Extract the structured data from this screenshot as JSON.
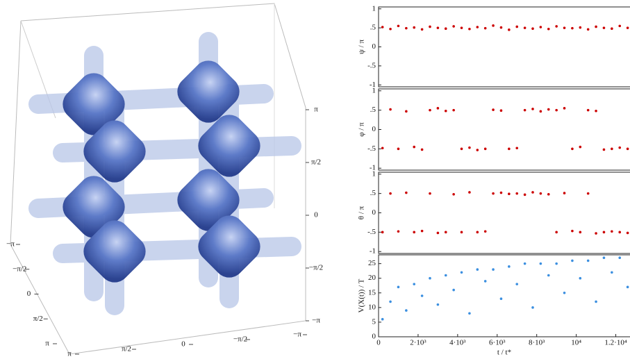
{
  "chart_data": [
    {
      "type": "isosurface",
      "xticks": [
        {
          "value": 1,
          "label": "π"
        },
        {
          "value": 0.5,
          "label": "π/2"
        },
        {
          "value": 0,
          "label": "0"
        },
        {
          "value": -0.5,
          "label": "−π/2"
        },
        {
          "value": -1,
          "label": "−π"
        }
      ],
      "yticks": [
        {
          "value": -1,
          "label": "−π"
        },
        {
          "value": -0.5,
          "label": "−π/2"
        },
        {
          "value": 0,
          "label": "0"
        },
        {
          "value": 0.5,
          "label": "π/2"
        },
        {
          "value": 1,
          "label": "π"
        }
      ],
      "zticks": [
        {
          "value": 1,
          "label": "π"
        },
        {
          "value": 0.5,
          "label": "π/2"
        },
        {
          "value": 0,
          "label": "0"
        },
        {
          "value": -0.5,
          "label": "−π/2"
        },
        {
          "value": -1,
          "label": "−π"
        }
      ],
      "xlim": [
        -1,
        1
      ],
      "ylim": [
        -1,
        1
      ],
      "zlim": [
        -1,
        1
      ]
    },
    {
      "type": "scatter",
      "ylabel": "ψ / π",
      "color": "#cc0000",
      "x": [
        200,
        600,
        1000,
        1400,
        1800,
        2200,
        2600,
        3000,
        3400,
        3800,
        4200,
        4600,
        5000,
        5400,
        5800,
        6200,
        6600,
        7000,
        7400,
        7800,
        8200,
        8600,
        9000,
        9400,
        9800,
        10200,
        10600,
        11000,
        11400,
        11800,
        12200,
        12600
      ],
      "values": [
        0.52,
        0.47,
        0.55,
        0.49,
        0.51,
        0.46,
        0.53,
        0.5,
        0.48,
        0.54,
        0.5,
        0.47,
        0.52,
        0.49,
        0.56,
        0.51,
        0.45,
        0.53,
        0.5,
        0.48,
        0.52,
        0.47,
        0.54,
        0.5,
        0.49,
        0.51,
        0.46,
        0.53,
        0.5,
        0.48,
        0.55,
        0.5
      ],
      "xlim": [
        0,
        13000
      ],
      "ylim": [
        -1.05,
        1.05
      ],
      "yticks": [
        {
          "value": -1,
          "label": "-1"
        },
        {
          "value": -0.5,
          "label": "-.5"
        },
        0,
        {
          "value": 0.5,
          "label": ".5"
        },
        1
      ]
    },
    {
      "type": "scatter",
      "ylabel": "φ / π",
      "color": "#cc0000",
      "x": [
        200,
        600,
        1000,
        1400,
        1800,
        2200,
        2600,
        3000,
        3400,
        3800,
        4200,
        4600,
        5000,
        5400,
        5800,
        6200,
        6600,
        7000,
        7400,
        7800,
        8200,
        8600,
        9000,
        9400,
        9800,
        10200,
        10600,
        11000,
        11400,
        11800,
        12200,
        12600
      ],
      "values": [
        -0.48,
        0.52,
        -0.5,
        0.47,
        -0.45,
        -0.52,
        0.5,
        0.55,
        0.48,
        0.5,
        -0.5,
        -0.47,
        -0.53,
        -0.5,
        0.51,
        0.49,
        -0.5,
        -0.48,
        0.5,
        0.53,
        0.47,
        0.52,
        0.5,
        0.55,
        -0.5,
        -0.45,
        0.5,
        0.48,
        -0.52,
        -0.5,
        -0.47,
        -0.5
      ],
      "xlim": [
        0,
        13000
      ],
      "ylim": [
        -1.05,
        1.05
      ],
      "yticks": [
        {
          "value": -1,
          "label": "-1"
        },
        {
          "value": -0.5,
          "label": "-.5"
        },
        0,
        {
          "value": 0.5,
          "label": ".5"
        },
        1
      ]
    },
    {
      "type": "scatter",
      "ylabel": "θ / π",
      "color": "#cc0000",
      "x": [
        200,
        600,
        1000,
        1400,
        1800,
        2200,
        2600,
        3000,
        3400,
        3800,
        4200,
        4600,
        5000,
        5400,
        5800,
        6200,
        6600,
        7000,
        7400,
        7800,
        8200,
        8600,
        9000,
        9400,
        9800,
        10200,
        10600,
        11000,
        11400,
        11800,
        12200,
        12600
      ],
      "values": [
        -0.5,
        0.5,
        -0.48,
        0.52,
        -0.5,
        -0.47,
        0.5,
        -0.52,
        -0.5,
        0.48,
        -0.5,
        0.53,
        -0.5,
        -0.48,
        0.5,
        0.52,
        0.49,
        0.5,
        0.47,
        0.53,
        0.5,
        0.48,
        -0.5,
        0.51,
        -0.47,
        -0.5,
        0.5,
        -0.53,
        -0.5,
        -0.48,
        -0.5,
        -0.52
      ],
      "xlim": [
        0,
        13000
      ],
      "ylim": [
        -1.05,
        1.05
      ],
      "yticks": [
        {
          "value": -1,
          "label": "-1"
        },
        {
          "value": -0.5,
          "label": "-.5"
        },
        0,
        {
          "value": 0.5,
          "label": ".5"
        },
        1
      ]
    },
    {
      "type": "scatter",
      "ylabel": "V(X(t)) / T",
      "xlabel": "t / t*",
      "color": "#3b8fe0",
      "x": [
        200,
        600,
        1000,
        1400,
        1800,
        2200,
        2600,
        3000,
        3400,
        3800,
        4200,
        4600,
        5000,
        5400,
        5800,
        6200,
        6600,
        7000,
        7400,
        7800,
        8200,
        8600,
        9000,
        9400,
        9800,
        10200,
        10600,
        11000,
        11400,
        11800,
        12200,
        12600
      ],
      "values": [
        6,
        12,
        17,
        9,
        18,
        14,
        20,
        11,
        21,
        16,
        22,
        8,
        23,
        19,
        23,
        13,
        24,
        18,
        25,
        10,
        25,
        21,
        25,
        15,
        26,
        20,
        26,
        12,
        27,
        22,
        27,
        17
      ],
      "xlim": [
        0,
        13000
      ],
      "ylim": [
        0,
        28
      ],
      "yticks": [
        0,
        5,
        10,
        15,
        20,
        25
      ],
      "xticks": [
        0,
        {
          "value": 2000,
          "label": "2·10³"
        },
        {
          "value": 4000,
          "label": "4·10³"
        },
        {
          "value": 6000,
          "label": "6·10³"
        },
        {
          "value": 8000,
          "label": "8·10³"
        },
        {
          "value": 10000,
          "label": "10⁴"
        },
        {
          "value": 12000,
          "label": "1.2·10⁴"
        }
      ]
    }
  ]
}
